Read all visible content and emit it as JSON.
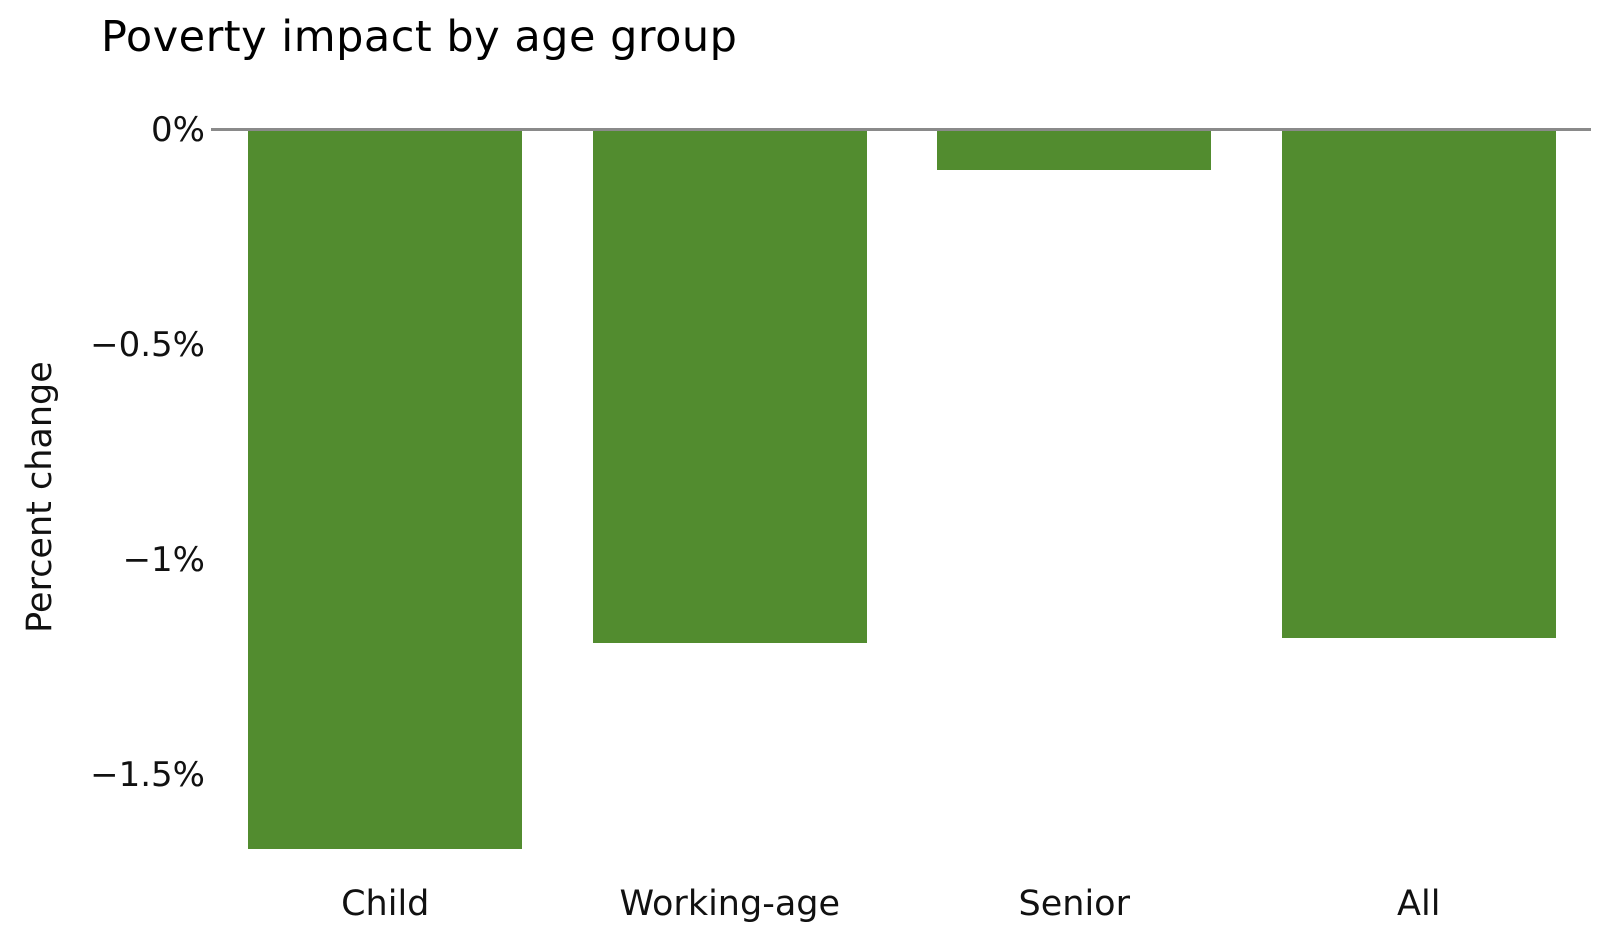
{
  "chart_data": {
    "type": "bar",
    "title": "Poverty impact by age group",
    "xlabel": "",
    "ylabel": "Percent change",
    "unit": "%",
    "categories": [
      "Child",
      "Working-age",
      "Senior",
      "All"
    ],
    "values": [
      -1.67,
      -1.19,
      -0.09,
      -1.18
    ],
    "yticks": [
      {
        "label": "0%",
        "value": 0
      },
      {
        "label": "−0.5%",
        "value": -0.5
      },
      {
        "label": "−1%",
        "value": -1
      },
      {
        "label": "−1.5%",
        "value": -1.5
      }
    ],
    "ylim": [
      -1.8,
      0
    ],
    "grid": false,
    "legend": null,
    "colors": {
      "bar": "#528c2f",
      "axis_line": "#8a8a8a",
      "text": "#111111",
      "background": "#ffffff"
    }
  }
}
